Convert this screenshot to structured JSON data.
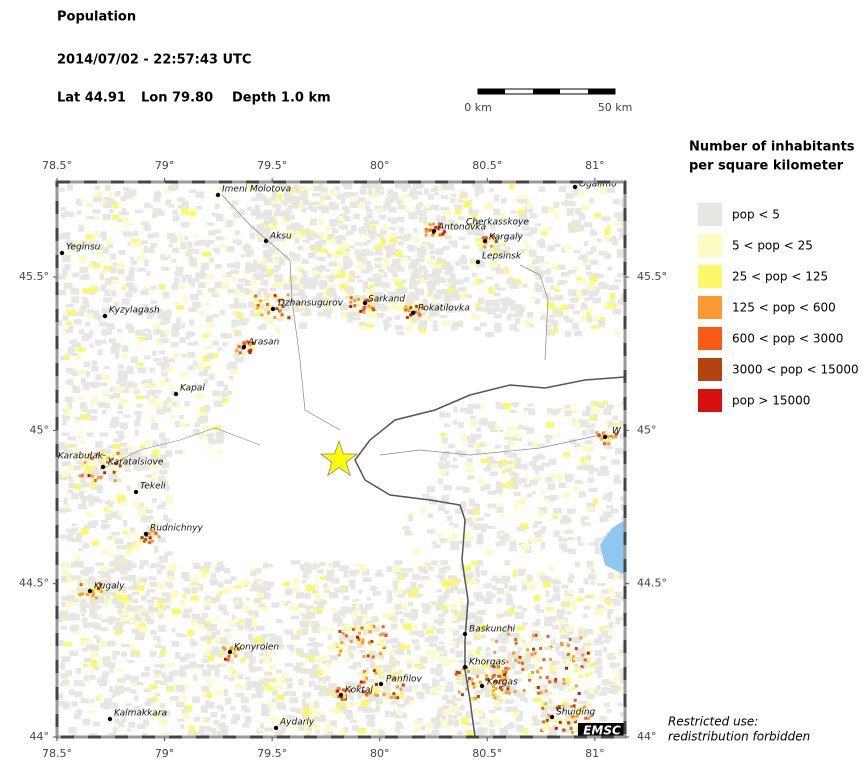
{
  "header": {
    "title": "Population",
    "datetime": "2014/07/02 - 22:57:43 UTC",
    "lat": "Lat 44.91",
    "lon": "Lon 79.80",
    "depth": "Depth 1.0 km"
  },
  "scale_bar": {
    "start": "0 km",
    "end": "50 km"
  },
  "map": {
    "lonlim": [
      78.5,
      81.14
    ],
    "latlim": [
      44,
      45.81
    ],
    "lon_ticks": [
      {
        "value": 78.5,
        "label": "78.5°"
      },
      {
        "value": 79,
        "label": "79°"
      },
      {
        "value": 79.5,
        "label": "79.5°"
      },
      {
        "value": 80,
        "label": "80°"
      },
      {
        "value": 80.5,
        "label": "80.5°"
      },
      {
        "value": 81,
        "label": "81°"
      }
    ],
    "lat_ticks": [
      {
        "value": 44,
        "label": "44°"
      },
      {
        "value": 44.5,
        "label": "44.5°"
      },
      {
        "value": 45,
        "label": "45°"
      },
      {
        "value": 45.5,
        "label": "45.5°"
      }
    ]
  },
  "cities": [
    "Imeni Molotova",
    "Ogalimo",
    "Aksu",
    "Yeginsu",
    "Cherkasskoye",
    "Antonovka",
    "Kargaly",
    "Lepsinsk",
    "Kyzylagash",
    "Dzhansugurov",
    "Sarkand",
    "Pokatilovka",
    "Arasan",
    "Kapal",
    "W",
    "Karabulak",
    "Karatalsiove",
    "Tekeli",
    "Rudnichnyy",
    "Kugaly",
    "Baskunchi",
    "Konyrolen",
    "Khorgas",
    "Panfilov",
    "Korgas",
    "Koktal",
    "Kalmakkara",
    "Shuiding",
    "Aydarly"
  ],
  "legend": {
    "title": [
      "Number of inhabitants",
      "per square kilometer"
    ],
    "items": [
      {
        "label": "pop < 5",
        "color": "#e6e6e2"
      },
      {
        "label": "5 < pop < 25",
        "color": "#fdfbc4"
      },
      {
        "label": "25 < pop < 125",
        "color": "#fbf86a"
      },
      {
        "label": "125 < pop < 600",
        "color": "#fb9a34"
      },
      {
        "label": "600 < pop < 3000",
        "color": "#fb5a14"
      },
      {
        "label": "3000 < pop < 15000",
        "color": "#b4440f"
      },
      {
        "label": "pop > 15000",
        "color": "#d80f0f"
      }
    ]
  },
  "badge": "EMSC",
  "notice": [
    "Restricted use:",
    "redistribution forbidden"
  ]
}
